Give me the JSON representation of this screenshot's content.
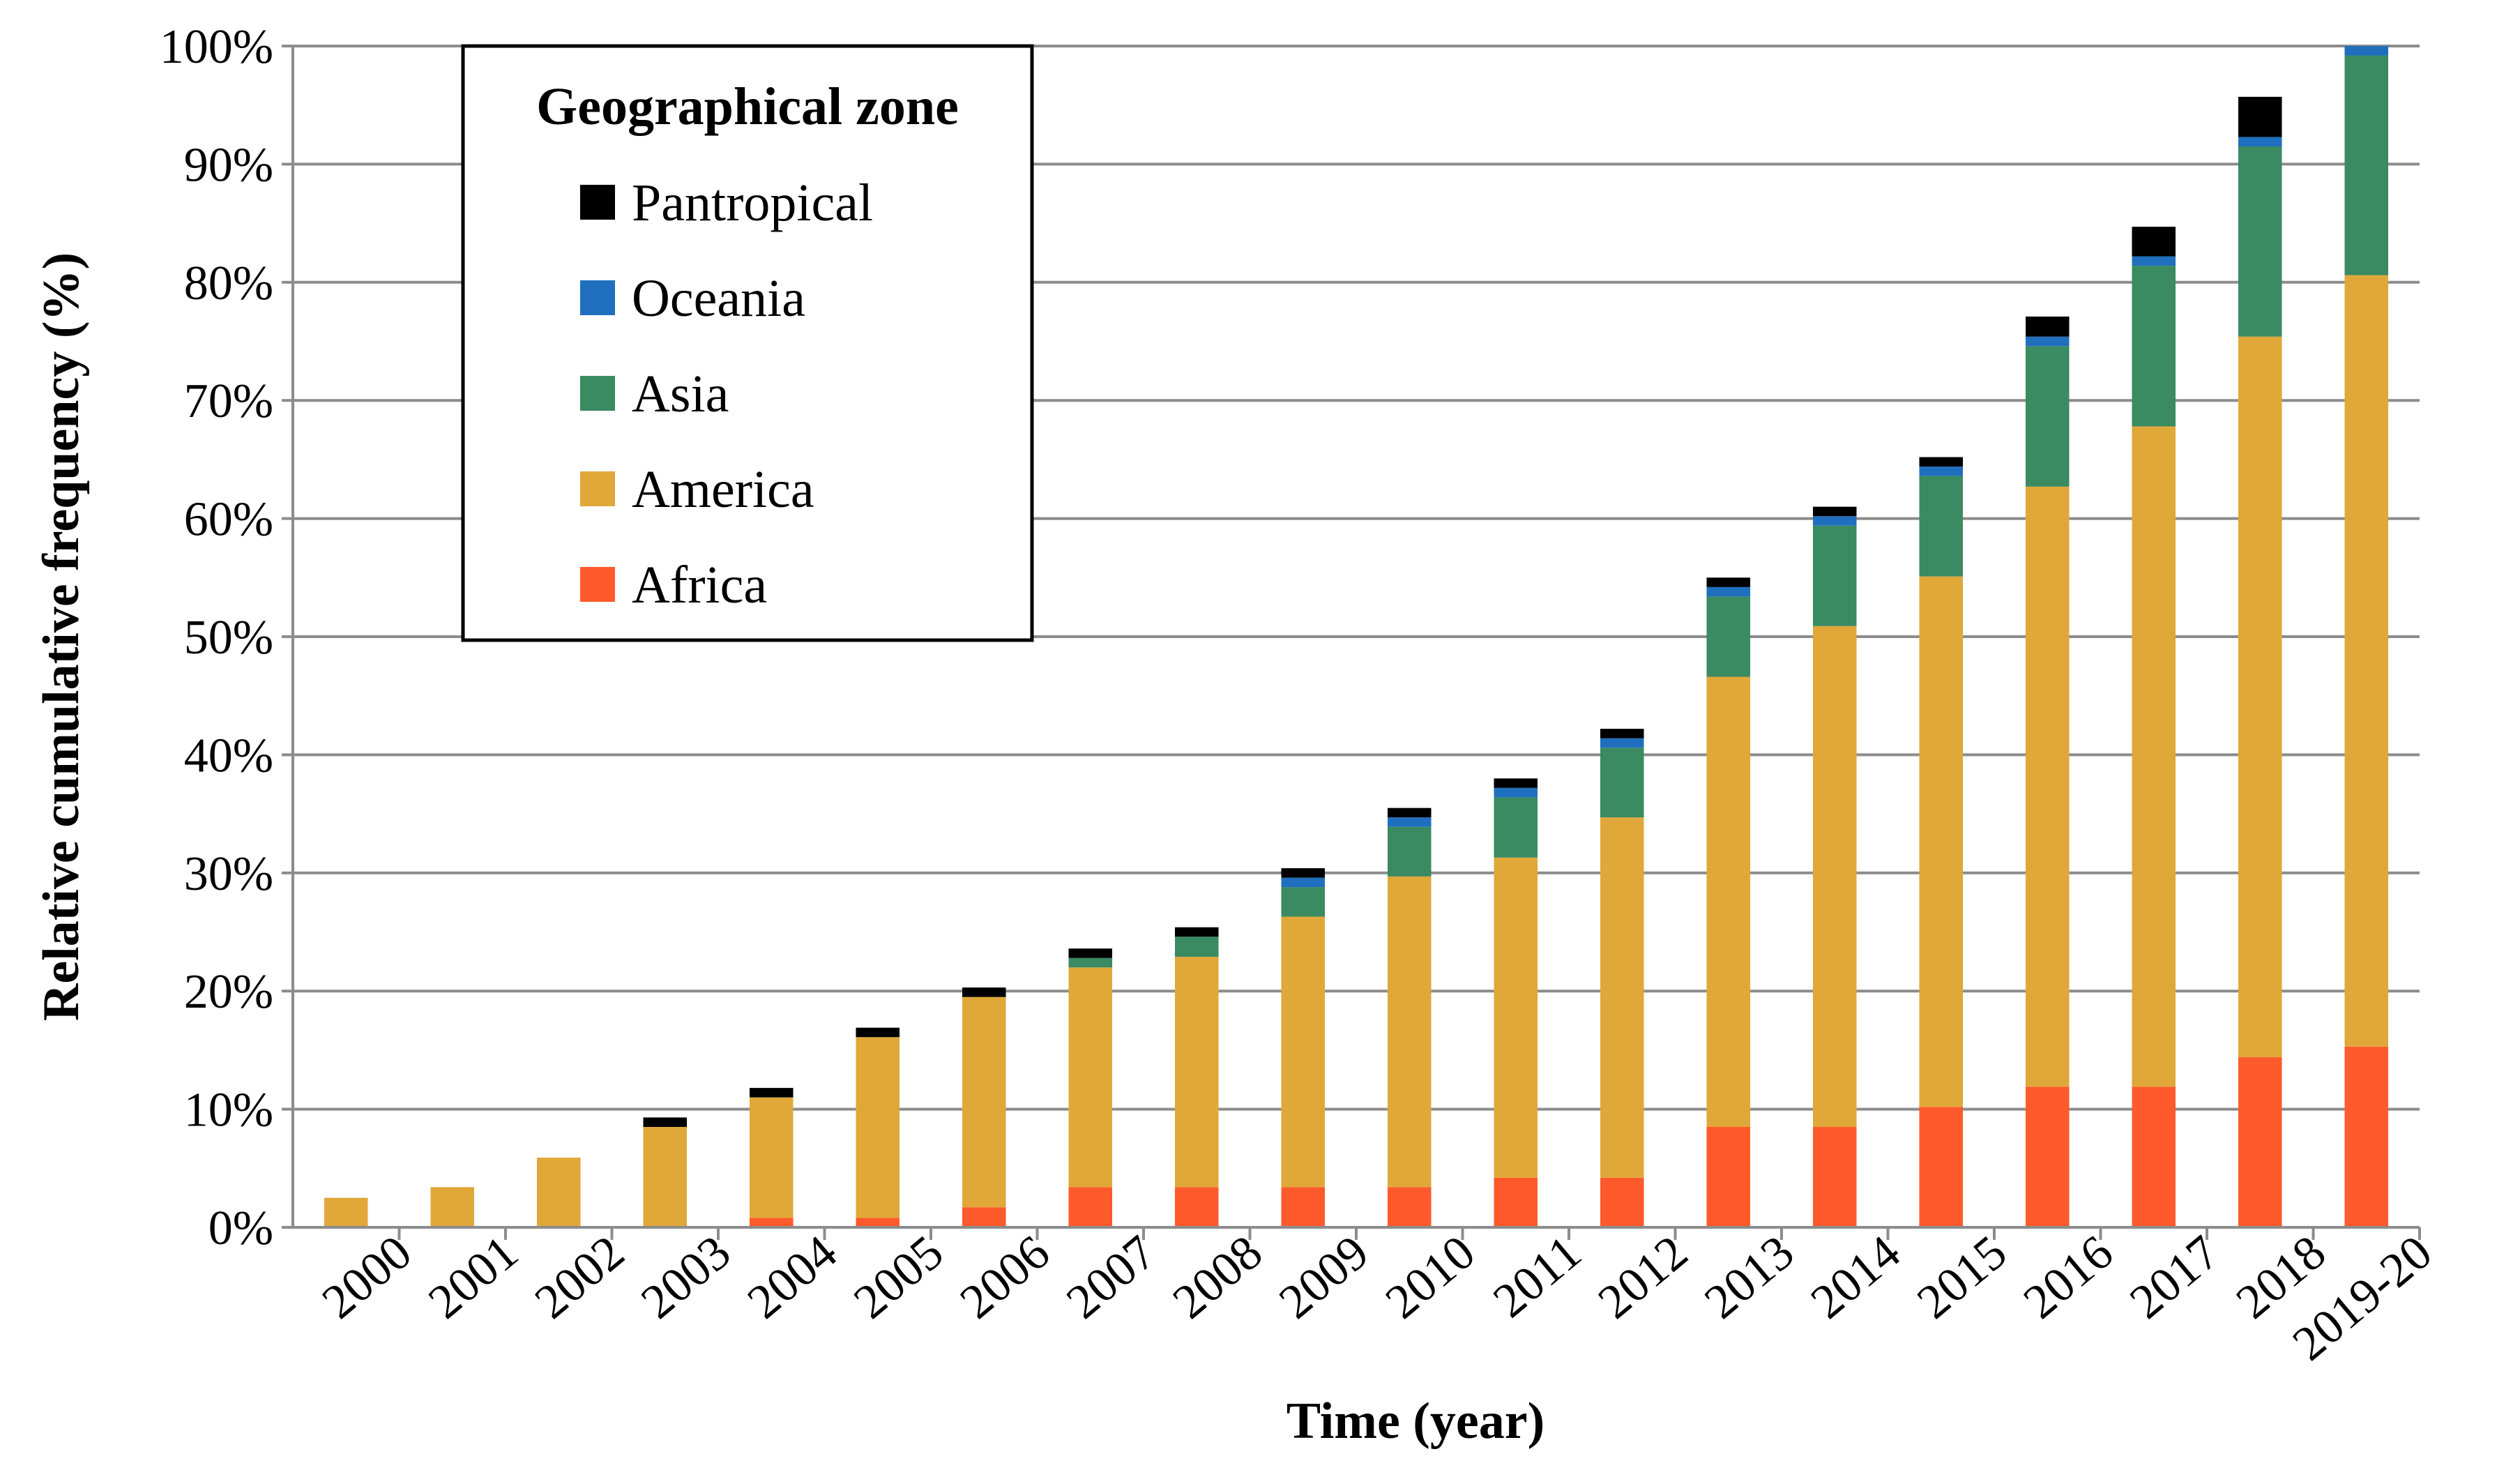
{
  "chart_data": {
    "type": "bar",
    "stacked": true,
    "title": "",
    "xlabel": "Time (year)",
    "ylabel": "Relative cumulative frequency (%)",
    "ylim": [
      0,
      100
    ],
    "y_ticks": [
      "0%",
      "10%",
      "20%",
      "30%",
      "40%",
      "50%",
      "60%",
      "70%",
      "80%",
      "90%",
      "100%"
    ],
    "grid": true,
    "categories": [
      "2000",
      "2001",
      "2002",
      "2003",
      "2004",
      "2005",
      "2006",
      "2007",
      "2008",
      "2009",
      "2010",
      "2011",
      "2012",
      "2013",
      "2014",
      "2015",
      "2016",
      "2017",
      "2018",
      "2019-20"
    ],
    "series": [
      {
        "name": "Africa",
        "color": "#ff5a2c",
        "values": [
          0,
          0,
          0,
          0,
          0.8,
          0.8,
          1.7,
          3.4,
          3.4,
          3.4,
          3.4,
          4.2,
          4.2,
          8.5,
          8.5,
          10.2,
          11.9,
          11.9,
          14.4,
          15.3
        ]
      },
      {
        "name": "America",
        "color": "#e0a838",
        "values": [
          2.5,
          3.4,
          5.9,
          8.5,
          10.2,
          15.3,
          17.8,
          18.6,
          19.5,
          22.9,
          26.3,
          27.1,
          30.5,
          38.1,
          42.4,
          44.9,
          50.8,
          55.9,
          61.0,
          65.3
        ]
      },
      {
        "name": "Asia",
        "color": "#3a8a62",
        "values": [
          0,
          0,
          0,
          0,
          0,
          0,
          0,
          0.8,
          1.7,
          2.5,
          4.2,
          5.1,
          5.9,
          6.8,
          8.5,
          8.5,
          11.9,
          13.6,
          16.1,
          18.6
        ]
      },
      {
        "name": "Oceania",
        "color": "#1f6fbe",
        "values": [
          0,
          0,
          0,
          0,
          0,
          0,
          0,
          0,
          0,
          0.8,
          0.8,
          0.8,
          0.8,
          0.8,
          0.8,
          0.8,
          0.8,
          0.8,
          0.8,
          0.8
        ]
      },
      {
        "name": "Pantropical",
        "color": "#000000",
        "values": [
          0,
          0,
          0,
          0.8,
          0.8,
          0.8,
          0.8,
          0.8,
          0.8,
          0.8,
          0.8,
          0.8,
          0.8,
          0.8,
          0.8,
          0.8,
          1.7,
          2.5,
          3.4,
          0
        ]
      }
    ],
    "legend": {
      "title": "Geographical zone",
      "position": "top-left",
      "entries": [
        "Pantropical",
        "Oceania",
        "Asia",
        "America",
        "Africa"
      ]
    }
  }
}
